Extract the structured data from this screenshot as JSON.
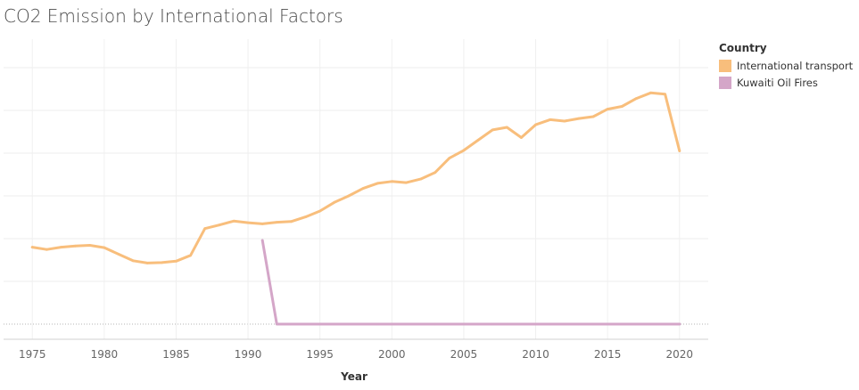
{
  "chart_data": {
    "type": "line",
    "title": "CO2 Emission by International Factors",
    "xlabel": "Year",
    "ylabel": "",
    "xlim": [
      1973,
      2022
    ],
    "ylim": [
      0,
      1100
    ],
    "x_ticks": [
      "1975",
      "1980",
      "1985",
      "1990",
      "1995",
      "2000",
      "2005",
      "2010",
      "2015",
      "2020"
    ],
    "legend_title": "Country",
    "legend_position": "top-right",
    "grid": true,
    "series": [
      {
        "name": "International transport",
        "color": "#F8BE7C",
        "x": [
          1975,
          1976,
          1977,
          1978,
          1979,
          1980,
          1981,
          1982,
          1983,
          1984,
          1985,
          1986,
          1987,
          1988,
          1989,
          1990,
          1991,
          1992,
          1993,
          1994,
          1995,
          1996,
          1997,
          1998,
          1999,
          2000,
          2001,
          2002,
          2003,
          2004,
          2005,
          2006,
          2007,
          2008,
          2009,
          2010,
          2011,
          2012,
          2013,
          2014,
          2015,
          2016,
          2017,
          2018,
          2019,
          2020
        ],
        "y": [
          330,
          320,
          330,
          335,
          338,
          328,
          300,
          272,
          262,
          264,
          270,
          295,
          410,
          425,
          442,
          435,
          430,
          437,
          440,
          460,
          485,
          522,
          550,
          582,
          604,
          612,
          607,
          622,
          650,
          712,
          745,
          789,
          833,
          844,
          800,
          855,
          877,
          871,
          882,
          890,
          922,
          934,
          968,
          992,
          986,
          743
        ]
      },
      {
        "name": "Kuwaiti Oil Fires",
        "color": "#D4A6C8",
        "x": [
          1991,
          1992,
          1993,
          1994,
          1995,
          1996,
          1997,
          1998,
          1999,
          2000,
          2001,
          2002,
          2003,
          2004,
          2005,
          2006,
          2007,
          2008,
          2009,
          2010,
          2011,
          2012,
          2013,
          2014,
          2015,
          2016,
          2017,
          2018,
          2019,
          2020
        ],
        "y": [
          359,
          0,
          0,
          0,
          0,
          0,
          0,
          0,
          0,
          0,
          0,
          0,
          0,
          0,
          0,
          0,
          0,
          0,
          0,
          0,
          0,
          0,
          0,
          0,
          0,
          0,
          0,
          0,
          0,
          0
        ]
      }
    ]
  }
}
